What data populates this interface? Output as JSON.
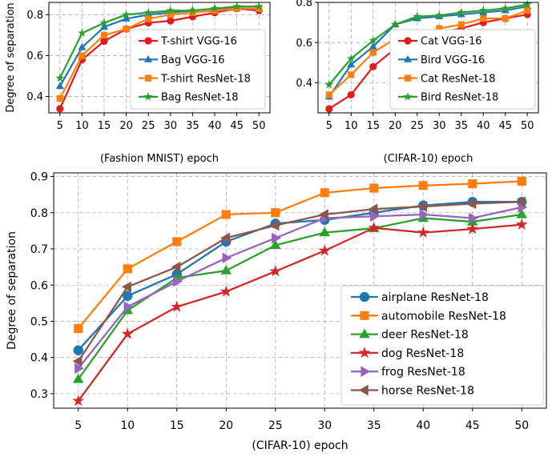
{
  "chart_data": [
    {
      "type": "line",
      "xlabel": "(Fashion MNIST) epoch",
      "ylabel": "Degree of separation",
      "x": [
        5,
        10,
        15,
        20,
        25,
        30,
        35,
        40,
        45,
        50
      ],
      "ylim": [
        0.32,
        0.86
      ],
      "yticks": [
        0.4,
        0.6,
        0.8
      ],
      "grid": true,
      "legend": "lower-right",
      "series": [
        {
          "name": "T-shirt VGG-16",
          "color": "#e41a1c",
          "marker": "circle",
          "values": [
            0.34,
            0.58,
            0.67,
            0.73,
            0.76,
            0.77,
            0.79,
            0.81,
            0.83,
            0.82
          ]
        },
        {
          "name": "Bag VGG-16",
          "color": "#1f77b4",
          "marker": "triangle-up",
          "values": [
            0.45,
            0.64,
            0.74,
            0.78,
            0.8,
            0.81,
            0.82,
            0.83,
            0.83,
            0.83
          ]
        },
        {
          "name": "T-shirt ResNet-18",
          "color": "#ff7f0e",
          "marker": "square",
          "values": [
            0.39,
            0.6,
            0.7,
            0.73,
            0.78,
            0.8,
            0.81,
            0.82,
            0.83,
            0.83
          ]
        },
        {
          "name": "Bag ResNet-18",
          "color": "#2ca02c",
          "marker": "star",
          "values": [
            0.49,
            0.71,
            0.76,
            0.8,
            0.81,
            0.82,
            0.82,
            0.83,
            0.84,
            0.84
          ]
        }
      ]
    },
    {
      "type": "line",
      "xlabel": "(CIFAR-10) epoch",
      "ylabel": "",
      "x": [
        5,
        10,
        15,
        20,
        25,
        30,
        35,
        40,
        45,
        50
      ],
      "ylim": [
        0.25,
        0.8
      ],
      "yticks": [
        0.4,
        0.6,
        0.8
      ],
      "grid": true,
      "legend": "lower-right",
      "series": [
        {
          "name": "Cat VGG-16",
          "color": "#e41a1c",
          "marker": "circle",
          "values": [
            0.27,
            0.34,
            0.48,
            0.57,
            0.61,
            0.65,
            0.67,
            0.7,
            0.72,
            0.74
          ]
        },
        {
          "name": "Bird VGG-16",
          "color": "#1f77b4",
          "marker": "triangle-up",
          "values": [
            0.33,
            0.49,
            0.58,
            0.69,
            0.72,
            0.73,
            0.74,
            0.75,
            0.76,
            0.78
          ]
        },
        {
          "name": "Cat ResNet-18",
          "color": "#ff7f0e",
          "marker": "square",
          "values": [
            0.34,
            0.44,
            0.55,
            0.62,
            0.64,
            0.67,
            0.69,
            0.72,
            0.72,
            0.76
          ]
        },
        {
          "name": "Bird ResNet-18",
          "color": "#2ca02c",
          "marker": "star",
          "values": [
            0.39,
            0.52,
            0.61,
            0.69,
            0.73,
            0.735,
            0.75,
            0.76,
            0.77,
            0.79
          ]
        }
      ]
    },
    {
      "type": "line",
      "xlabel": "(CIFAR-10) epoch",
      "ylabel": "Degree of separation",
      "x": [
        5,
        10,
        15,
        20,
        25,
        30,
        35,
        40,
        45,
        50
      ],
      "ylim": [
        0.26,
        0.91
      ],
      "yticks": [
        0.3,
        0.4,
        0.5,
        0.6,
        0.7,
        0.8,
        0.9
      ],
      "grid": true,
      "legend": "lower-right",
      "series": [
        {
          "name": "airplane ResNet-18",
          "color": "#1f77b4",
          "marker": "circle",
          "values": [
            0.42,
            0.57,
            0.63,
            0.72,
            0.77,
            0.78,
            0.8,
            0.82,
            0.83,
            0.83
          ]
        },
        {
          "name": "automobile ResNet-18",
          "color": "#ff7f0e",
          "marker": "square",
          "values": [
            0.48,
            0.645,
            0.72,
            0.795,
            0.8,
            0.855,
            0.868,
            0.875,
            0.88,
            0.887
          ]
        },
        {
          "name": "deer ResNet-18",
          "color": "#2ca02c",
          "marker": "triangle-up",
          "values": [
            0.34,
            0.53,
            0.62,
            0.64,
            0.71,
            0.745,
            0.757,
            0.785,
            0.775,
            0.795
          ]
        },
        {
          "name": "dog ResNet-18",
          "color": "#d62728",
          "marker": "star",
          "values": [
            0.28,
            0.465,
            0.54,
            0.582,
            0.638,
            0.695,
            0.758,
            0.745,
            0.755,
            0.767
          ]
        },
        {
          "name": "frog ResNet-18",
          "color": "#9467bd",
          "marker": "triangle-right",
          "values": [
            0.37,
            0.54,
            0.61,
            0.675,
            0.73,
            0.785,
            0.79,
            0.795,
            0.785,
            0.815
          ]
        },
        {
          "name": "horse ResNet-18",
          "color": "#8c564b",
          "marker": "triangle-left",
          "values": [
            0.39,
            0.595,
            0.65,
            0.73,
            0.765,
            0.795,
            0.81,
            0.817,
            0.825,
            0.83
          ]
        }
      ]
    }
  ]
}
